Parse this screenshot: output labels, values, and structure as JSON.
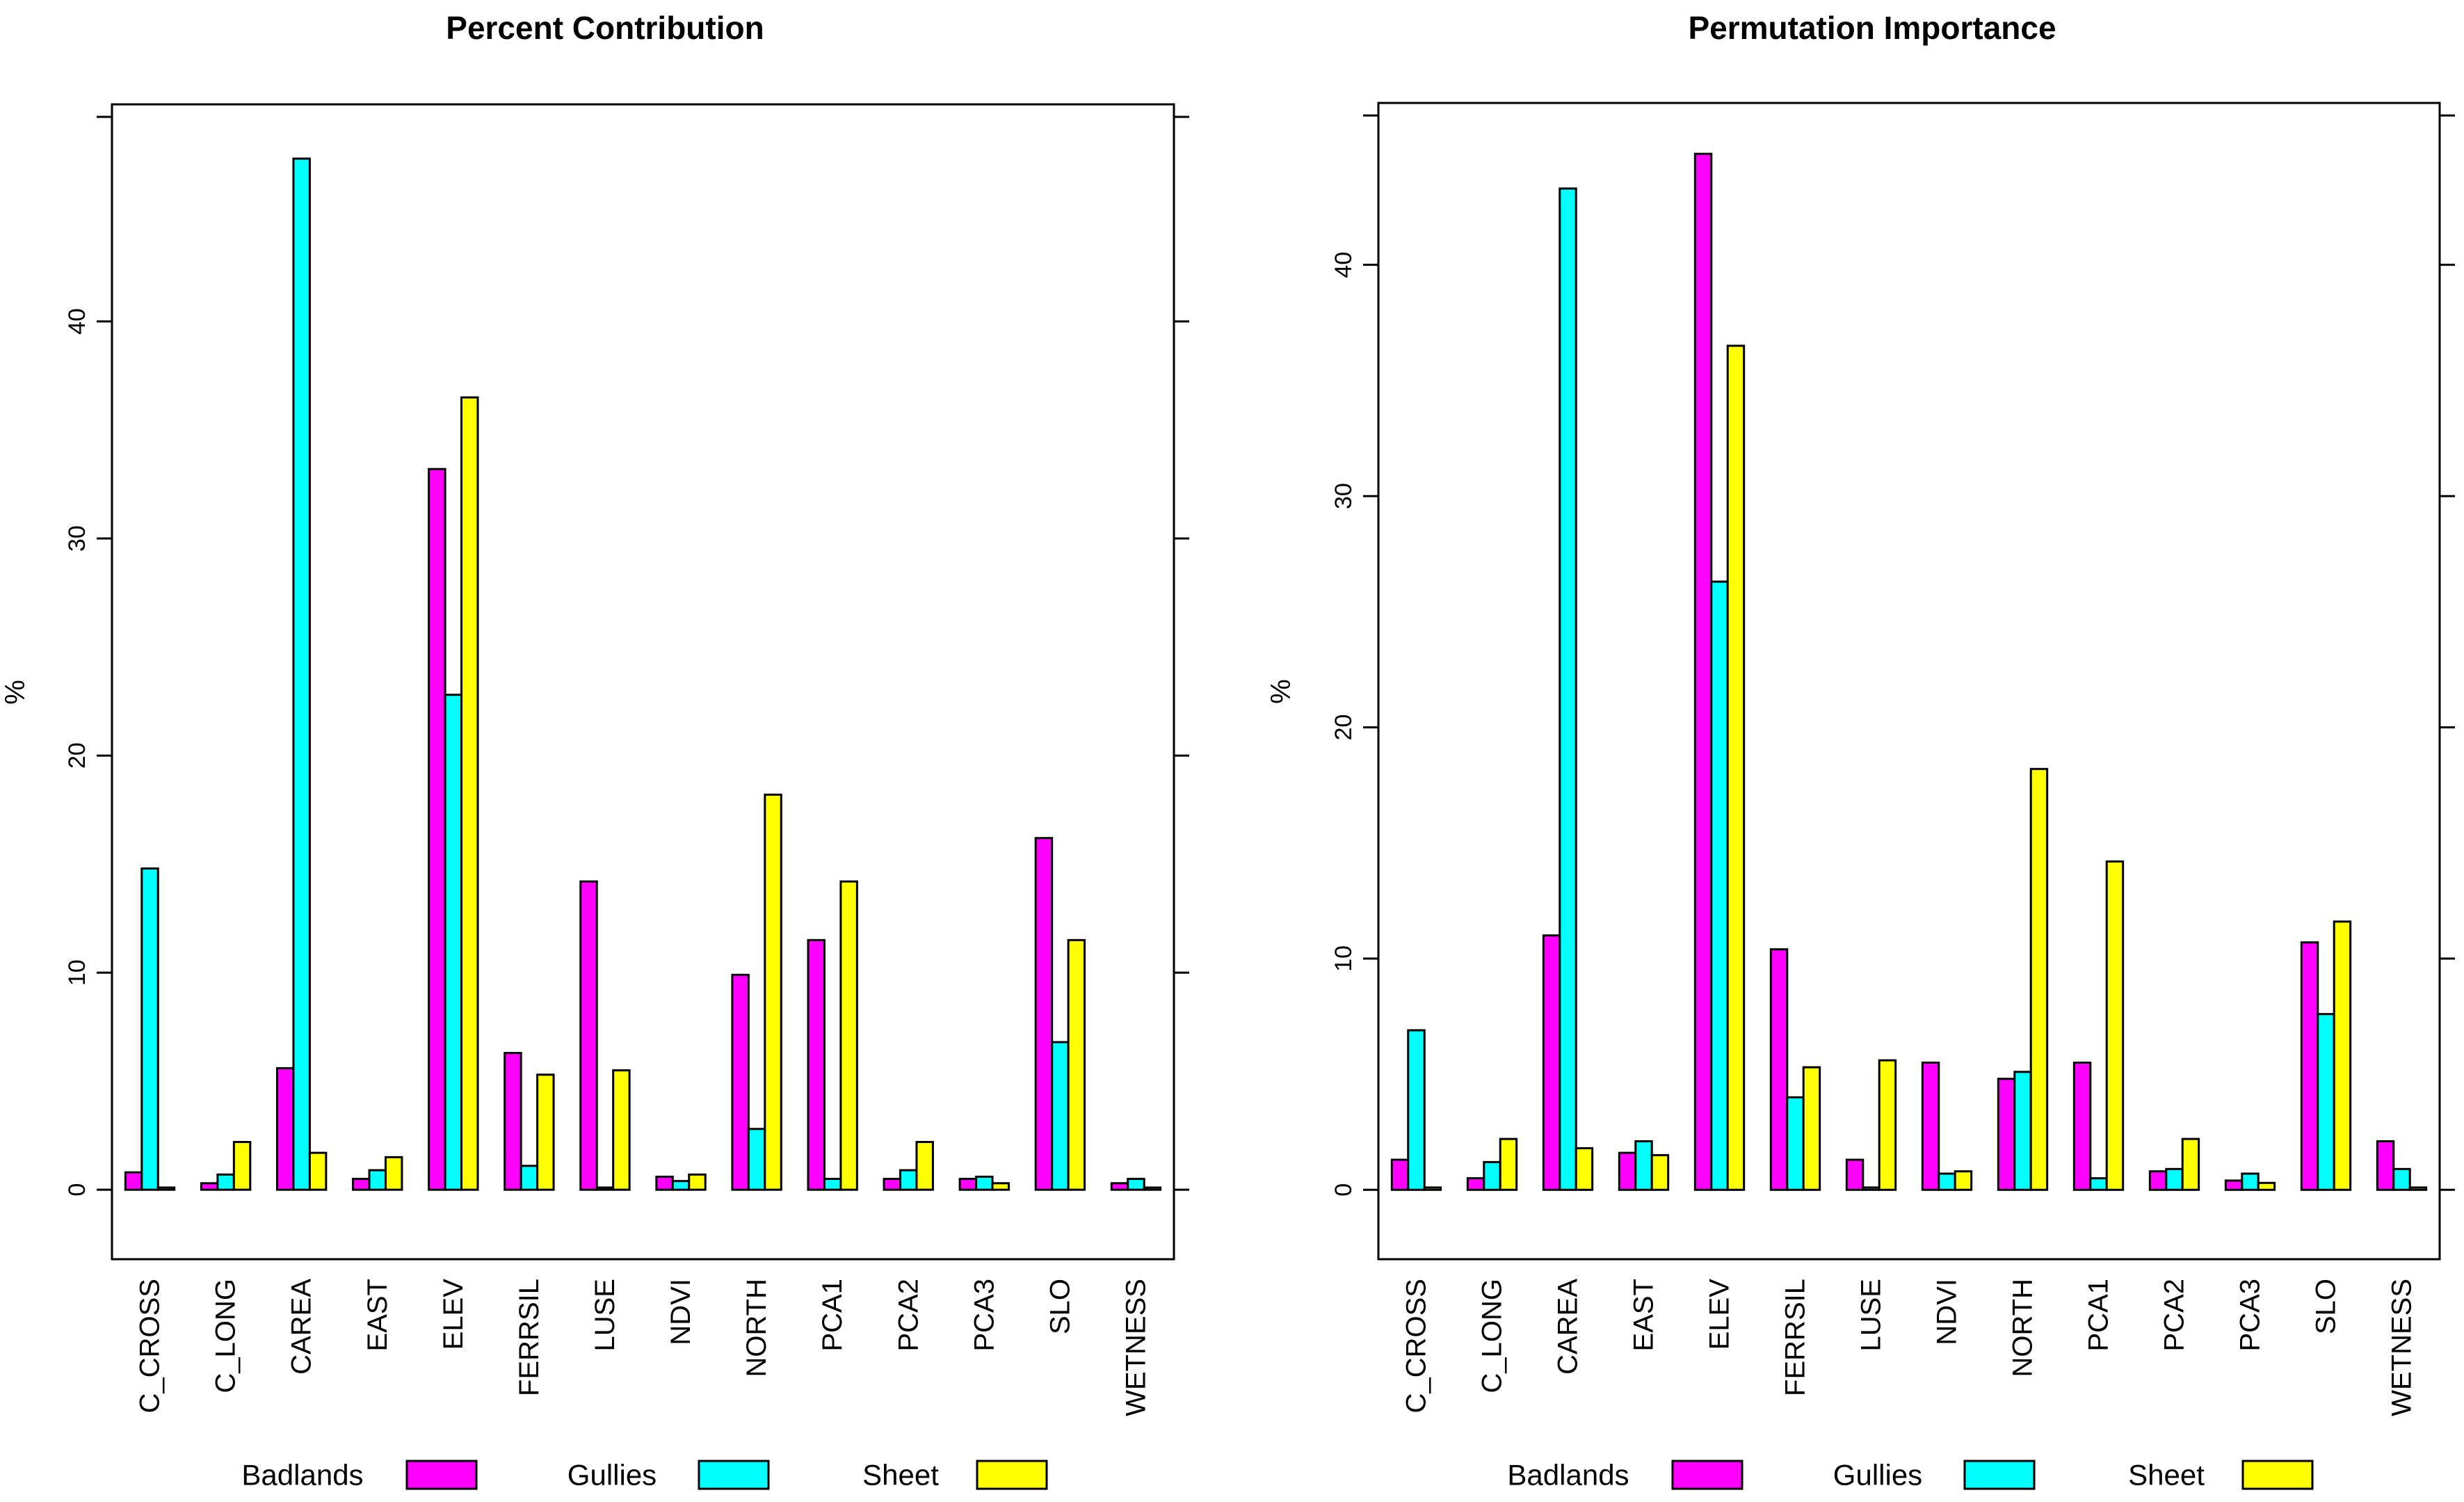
{
  "chart_data": [
    {
      "type": "bar",
      "title": "Percent Contribution",
      "ylabel": "%",
      "xlabel": "",
      "ylim": [
        -3.2,
        50.0
      ],
      "yticks": [
        0,
        10,
        20,
        30,
        40
      ],
      "categories": [
        "C_CROSS",
        "C_LONG",
        "CAREA",
        "EAST",
        "ELEV",
        "FERRSIL",
        "LUSE",
        "NDVI",
        "NORTH",
        "PCA1",
        "PCA2",
        "PCA3",
        "SLO",
        "WETNESS"
      ],
      "series": [
        {
          "name": "Badlands",
          "color": "#ff00ff",
          "values": [
            0.8,
            0.3,
            5.6,
            0.5,
            33.2,
            6.3,
            14.2,
            0.6,
            9.9,
            11.5,
            0.5,
            0.5,
            16.2,
            0.3
          ]
        },
        {
          "name": "Gullies",
          "color": "#00ffff",
          "values": [
            14.8,
            0.7,
            47.5,
            0.9,
            22.8,
            1.1,
            0.1,
            0.4,
            2.8,
            0.5,
            0.9,
            0.6,
            6.8,
            0.5
          ]
        },
        {
          "name": "Sheet",
          "color": "#ffff00",
          "values": [
            0.1,
            2.2,
            1.7,
            1.5,
            36.5,
            5.3,
            5.5,
            0.7,
            18.2,
            14.2,
            2.2,
            0.3,
            11.5,
            0.1
          ]
        }
      ],
      "legend": [
        "Badlands",
        "Gullies",
        "Sheet"
      ]
    },
    {
      "type": "bar",
      "title": "Permutation Importance",
      "ylabel": "%",
      "xlabel": "",
      "ylim": [
        -3.0,
        47.0
      ],
      "yticks": [
        0,
        10,
        20,
        30,
        40
      ],
      "categories": [
        "C_CROSS",
        "C_LONG",
        "CAREA",
        "EAST",
        "ELEV",
        "FERRSIL",
        "LUSE",
        "NDVI",
        "NORTH",
        "PCA1",
        "PCA2",
        "PCA3",
        "SLO",
        "WETNESS"
      ],
      "series": [
        {
          "name": "Badlands",
          "color": "#ff00ff",
          "values": [
            1.3,
            0.5,
            11.0,
            1.6,
            44.8,
            10.4,
            1.3,
            5.5,
            4.8,
            5.5,
            0.8,
            0.4,
            10.7,
            2.1
          ]
        },
        {
          "name": "Gullies",
          "color": "#00ffff",
          "values": [
            6.9,
            1.2,
            43.3,
            2.1,
            26.3,
            4.0,
            0.1,
            0.7,
            5.1,
            0.5,
            0.9,
            0.7,
            7.6,
            0.9
          ]
        },
        {
          "name": "Sheet",
          "color": "#ffff00",
          "values": [
            0.1,
            2.2,
            1.8,
            1.5,
            36.5,
            5.3,
            5.6,
            0.8,
            18.2,
            14.2,
            2.2,
            0.3,
            11.6,
            0.1
          ]
        }
      ],
      "legend": [
        "Badlands",
        "Gullies",
        "Sheet"
      ]
    }
  ]
}
